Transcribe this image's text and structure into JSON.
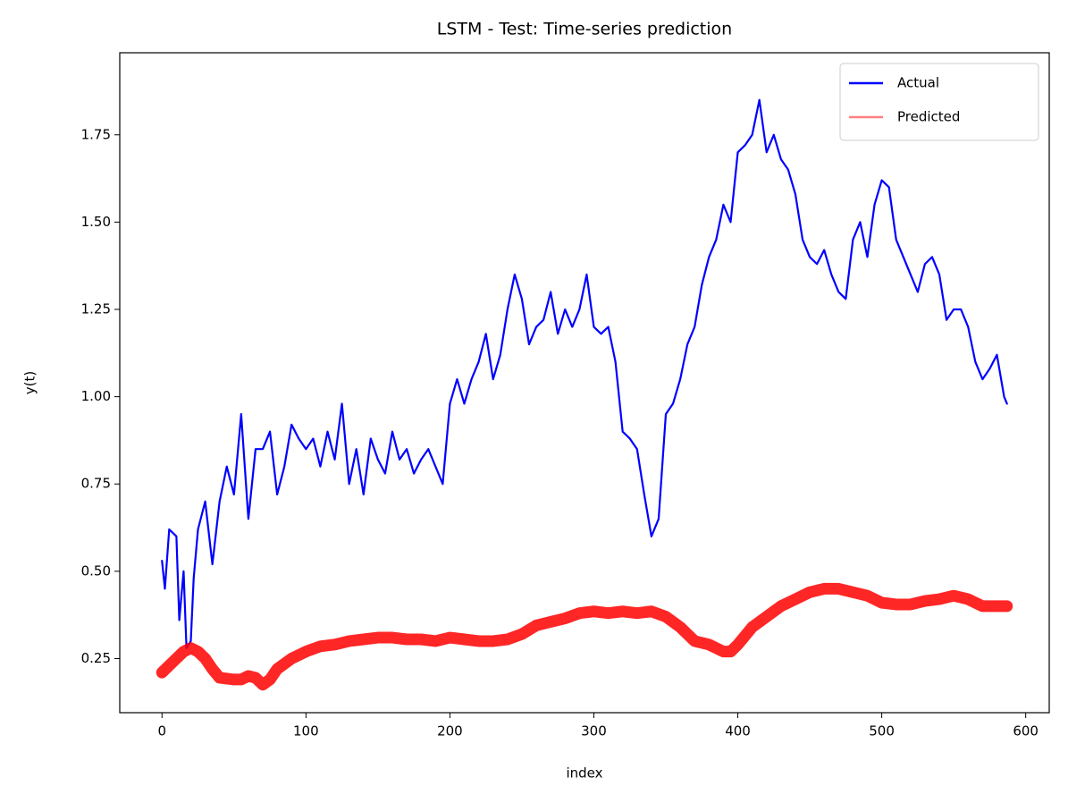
{
  "chart_data": {
    "type": "line",
    "title": "LSTM - Test: Time-series prediction",
    "xlabel": "index",
    "ylabel": "y(t)",
    "xlim": [
      -29.35,
      616.35
    ],
    "ylim": [
      0.095,
      1.985
    ],
    "xticks": [
      0,
      100,
      200,
      300,
      400,
      500,
      600
    ],
    "yticks": [
      0.25,
      {
        "value": 0.5,
        "label": "0.50"
      },
      0.75,
      {
        "value": 1.0,
        "label": "1.00"
      },
      1.25,
      {
        "value": 1.5,
        "label": "1.50"
      },
      1.75
    ],
    "legend": "upper right",
    "series": [
      {
        "name": "Actual",
        "color": "#0000ff",
        "x": [
          0,
          2,
          5,
          10,
          12,
          15,
          17,
          20,
          22,
          25,
          30,
          35,
          40,
          45,
          50,
          55,
          60,
          65,
          70,
          75,
          80,
          85,
          90,
          95,
          100,
          105,
          110,
          115,
          120,
          125,
          130,
          135,
          140,
          145,
          150,
          155,
          160,
          165,
          170,
          175,
          180,
          185,
          190,
          195,
          200,
          205,
          210,
          215,
          220,
          225,
          230,
          235,
          240,
          245,
          250,
          255,
          260,
          265,
          270,
          275,
          280,
          285,
          290,
          295,
          300,
          305,
          310,
          315,
          320,
          325,
          330,
          335,
          340,
          345,
          350,
          355,
          360,
          365,
          370,
          375,
          380,
          385,
          390,
          395,
          400,
          405,
          410,
          415,
          420,
          425,
          430,
          435,
          440,
          445,
          450,
          455,
          460,
          465,
          470,
          475,
          480,
          485,
          490,
          495,
          500,
          505,
          510,
          515,
          520,
          525,
          530,
          535,
          540,
          545,
          550,
          555,
          560,
          565,
          570,
          575,
          580,
          585,
          587
        ],
        "values": [
          0.53,
          0.45,
          0.62,
          0.6,
          0.36,
          0.5,
          0.28,
          0.3,
          0.48,
          0.62,
          0.7,
          0.52,
          0.7,
          0.8,
          0.72,
          0.95,
          0.65,
          0.85,
          0.85,
          0.9,
          0.72,
          0.8,
          0.92,
          0.88,
          0.85,
          0.88,
          0.8,
          0.9,
          0.82,
          0.98,
          0.75,
          0.85,
          0.72,
          0.88,
          0.82,
          0.78,
          0.9,
          0.82,
          0.85,
          0.78,
          0.82,
          0.85,
          0.8,
          0.75,
          0.98,
          1.05,
          0.98,
          1.05,
          1.1,
          1.18,
          1.05,
          1.12,
          1.25,
          1.35,
          1.28,
          1.15,
          1.2,
          1.22,
          1.3,
          1.18,
          1.25,
          1.2,
          1.25,
          1.35,
          1.2,
          1.18,
          1.2,
          1.1,
          0.9,
          0.88,
          0.85,
          0.72,
          0.6,
          0.65,
          0.95,
          0.98,
          1.05,
          1.15,
          1.2,
          1.32,
          1.4,
          1.45,
          1.55,
          1.5,
          1.7,
          1.72,
          1.75,
          1.85,
          1.7,
          1.75,
          1.68,
          1.65,
          1.58,
          1.45,
          1.4,
          1.38,
          1.42,
          1.35,
          1.3,
          1.28,
          1.45,
          1.5,
          1.4,
          1.55,
          1.62,
          1.6,
          1.45,
          1.4,
          1.35,
          1.3,
          1.38,
          1.4,
          1.35,
          1.22,
          1.25,
          1.25,
          1.2,
          1.1,
          1.05,
          1.08,
          1.12,
          1.0,
          0.98
        ]
      },
      {
        "name": "Predicted",
        "color": "#ff0000",
        "x": [
          0,
          10,
          15,
          20,
          25,
          30,
          35,
          40,
          50,
          55,
          60,
          65,
          70,
          75,
          80,
          90,
          100,
          110,
          120,
          130,
          140,
          150,
          160,
          170,
          180,
          190,
          200,
          210,
          220,
          230,
          240,
          250,
          260,
          270,
          280,
          290,
          300,
          310,
          320,
          330,
          340,
          350,
          360,
          370,
          380,
          390,
          395,
          400,
          410,
          420,
          430,
          440,
          450,
          460,
          470,
          480,
          490,
          500,
          510,
          520,
          530,
          540,
          550,
          560,
          570,
          580,
          587
        ],
        "values": [
          0.21,
          0.25,
          0.27,
          0.28,
          0.27,
          0.25,
          0.22,
          0.195,
          0.19,
          0.19,
          0.2,
          0.195,
          0.175,
          0.19,
          0.22,
          0.25,
          0.27,
          0.285,
          0.29,
          0.3,
          0.305,
          0.31,
          0.31,
          0.305,
          0.305,
          0.3,
          0.31,
          0.305,
          0.3,
          0.3,
          0.305,
          0.32,
          0.345,
          0.355,
          0.365,
          0.38,
          0.385,
          0.38,
          0.385,
          0.38,
          0.385,
          0.37,
          0.34,
          0.3,
          0.29,
          0.27,
          0.27,
          0.29,
          0.34,
          0.37,
          0.4,
          0.42,
          0.44,
          0.45,
          0.45,
          0.44,
          0.43,
          0.41,
          0.405,
          0.405,
          0.415,
          0.42,
          0.43,
          0.42,
          0.4,
          0.4,
          0.4
        ]
      }
    ]
  }
}
